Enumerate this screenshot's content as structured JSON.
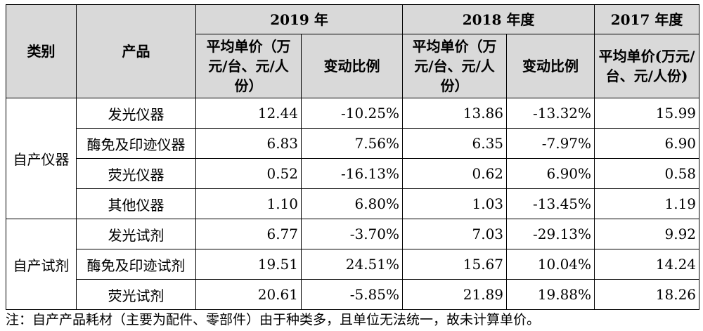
{
  "header": {
    "category": "类别",
    "product": "产品",
    "year_2019": "2019 年",
    "year_2018": "2018 年度",
    "year_2017": "2017 年度",
    "avg_price_2019": "平均单价（万元/台、元/人份）",
    "change_2019": "变动比例",
    "avg_price_2018": "平均单价（万元/台、元/人份）",
    "change_2018": "变动比例",
    "avg_price_2017": "平均单价(万元/台、元/人份)"
  },
  "groups": [
    {
      "category": "自产仪器",
      "rows": [
        {
          "product": "发光仪器",
          "p2019": "12.44",
          "c2019": "-10.25%",
          "p2018": "13.86",
          "c2018": "-13.32%",
          "p2017": "15.99"
        },
        {
          "product": "酶免及印迹仪器",
          "p2019": "6.83",
          "c2019": "7.56%",
          "p2018": "6.35",
          "c2018": "-7.97%",
          "p2017": "6.90"
        },
        {
          "product": "荧光仪器",
          "p2019": "0.52",
          "c2019": "-16.13%",
          "p2018": "0.62",
          "c2018": "6.90%",
          "p2017": "0.58"
        },
        {
          "product": "其他仪器",
          "p2019": "1.10",
          "c2019": "6.80%",
          "p2018": "1.03",
          "c2018": "-13.45%",
          "p2017": "1.19"
        }
      ]
    },
    {
      "category": "自产试剂",
      "rows": [
        {
          "product": "发光试剂",
          "p2019": "6.77",
          "c2019": "-3.70%",
          "p2018": "7.03",
          "c2018": "-29.13%",
          "p2017": "9.92"
        },
        {
          "product": "酶免及印迹试剂",
          "p2019": "19.51",
          "c2019": "24.51%",
          "p2018": "15.67",
          "c2018": "10.04%",
          "p2017": "14.24"
        },
        {
          "product": "荧光试剂",
          "p2019": "20.61",
          "c2019": "-5.85%",
          "p2018": "21.89",
          "c2018": "19.88%",
          "p2017": "18.26"
        }
      ]
    }
  ],
  "note": "注：自产产品耗材（主要为配件、零部件）由于种类多，且单位无法统一，故未计算单价。"
}
